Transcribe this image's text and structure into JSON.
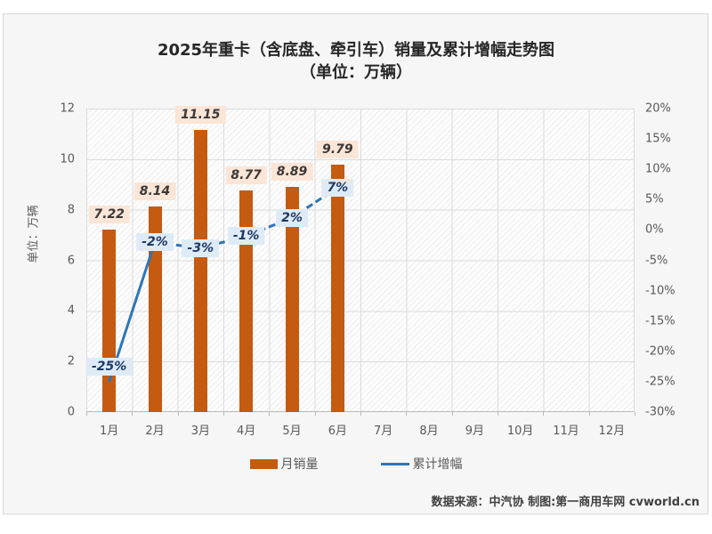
{
  "page": {
    "title_line1": "2025年重卡（含底盘、牵引车）销量及累计增幅走势图",
    "title_line2": "（单位：万辆）",
    "footer": "数据来源：中汽协  制图:第一商用车网 cvworld.cn"
  },
  "chart_data": {
    "type": "bar+line combo",
    "title": "2025年重卡（含底盘、牵引车）销量及累计增幅走势图（单位：万辆）",
    "categories": [
      "1月",
      "2月",
      "3月",
      "4月",
      "5月",
      "6月",
      "7月",
      "8月",
      "9月",
      "10月",
      "11月",
      "12月"
    ],
    "series": [
      {
        "name": "月销量",
        "type": "bar",
        "values": [
          7.22,
          8.14,
          11.15,
          8.77,
          8.89,
          9.79
        ],
        "labels": [
          "7.22",
          "8.14",
          "11.15",
          "8.77",
          "8.89",
          "9.79"
        ],
        "color": "#C55A11",
        "axis": "left"
      },
      {
        "name": "累计增幅",
        "type": "line",
        "values": [
          -25,
          -2,
          -3,
          -1,
          2,
          7
        ],
        "labels": [
          "-25%",
          "-2%",
          "-3%",
          "-1%",
          "2%",
          "7%"
        ],
        "color": "#2E75B6",
        "axis": "right",
        "label_dy": [
          -17,
          0,
          0,
          0,
          0,
          0
        ]
      }
    ],
    "left_axis": {
      "title": "单位：万辆",
      "min": 0,
      "max": 12,
      "ticks": [
        {
          "v": 0,
          "label": "0"
        },
        {
          "v": 2,
          "label": "2"
        },
        {
          "v": 4,
          "label": "4"
        },
        {
          "v": 6,
          "label": "6"
        },
        {
          "v": 8,
          "label": "8"
        },
        {
          "v": 10,
          "label": "10"
        },
        {
          "v": 12,
          "label": "12"
        }
      ]
    },
    "right_axis": {
      "min": -30,
      "max": 20,
      "ticks": [
        {
          "v": 20,
          "label": "20%"
        },
        {
          "v": 15,
          "label": "15%"
        },
        {
          "v": 10,
          "label": "10%"
        },
        {
          "v": 5,
          "label": "5%"
        },
        {
          "v": 0,
          "label": "0%"
        },
        {
          "v": -5,
          "label": "-5%"
        },
        {
          "v": -10,
          "label": "-10%"
        },
        {
          "v": -15,
          "label": "-15%"
        },
        {
          "v": -20,
          "label": "-20%"
        },
        {
          "v": -25,
          "label": "-25%"
        },
        {
          "v": -30,
          "label": "-30%"
        }
      ]
    },
    "legend_position": "bottom",
    "grid": true
  }
}
